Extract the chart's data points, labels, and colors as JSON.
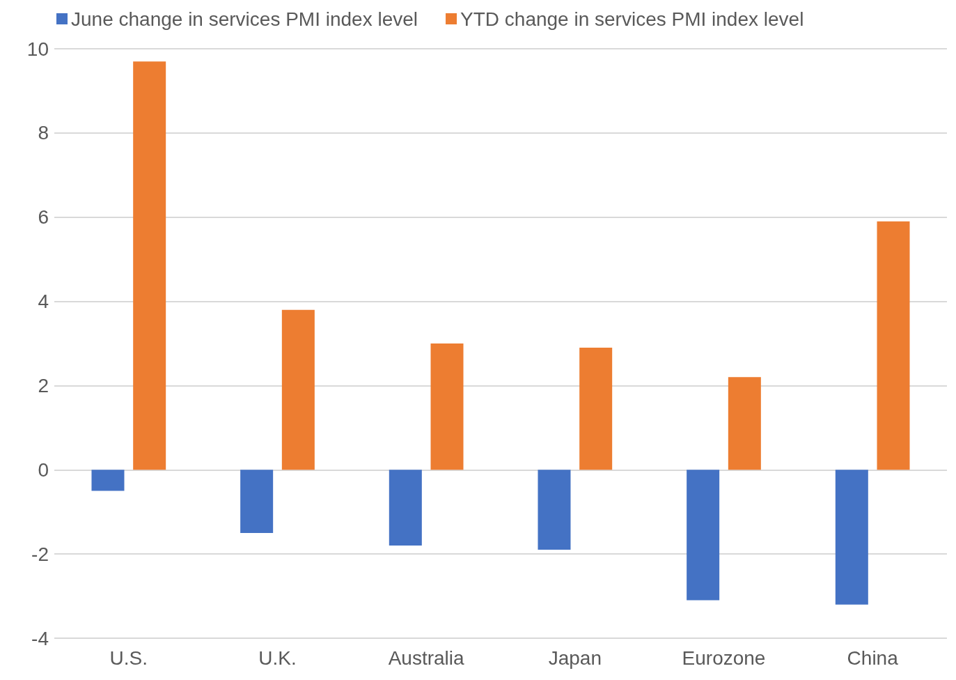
{
  "chart_data": {
    "type": "bar",
    "categories": [
      "U.S.",
      "U.K.",
      "Australia",
      "Japan",
      "Eurozone",
      "China"
    ],
    "series": [
      {
        "name": "June change in services PMI index level",
        "color": "#4472c4",
        "values": [
          -0.5,
          -1.5,
          -1.8,
          -1.9,
          -3.1,
          -3.2
        ]
      },
      {
        "name": "YTD change in services PMI index level",
        "color": "#ed7d31",
        "values": [
          9.7,
          3.8,
          3.0,
          2.9,
          2.2,
          5.9
        ]
      }
    ],
    "ylim": [
      -4,
      10
    ],
    "yticks": [
      -4,
      -2,
      0,
      2,
      4,
      6,
      8,
      10
    ],
    "grid": "y",
    "legend": "top left"
  }
}
